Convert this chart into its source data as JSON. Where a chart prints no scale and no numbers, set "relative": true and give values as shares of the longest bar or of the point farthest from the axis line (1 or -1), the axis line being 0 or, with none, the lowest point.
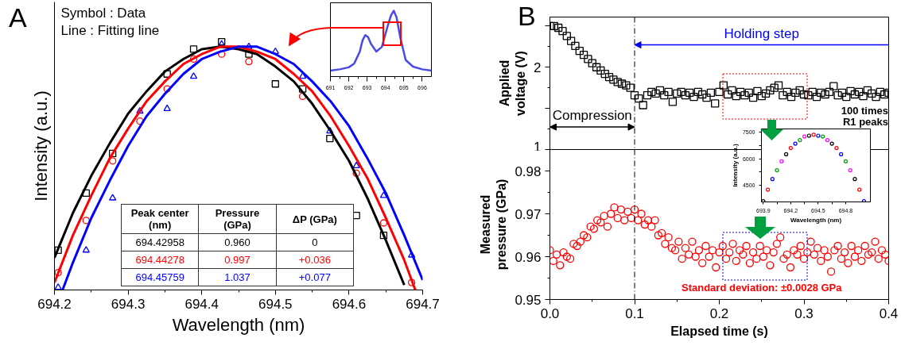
{
  "chart_data": [
    {
      "type": "scatter",
      "title": "A",
      "xlabel": "Wavelength (nm)",
      "ylabel": "Intensity (a.u.)",
      "relative": true,
      "tick_labels": "x",
      "xlim": [
        694.2,
        694.7
      ],
      "xticks": [
        694.2,
        694.3,
        694.4,
        694.5,
        694.6,
        694.7
      ],
      "annotations": [
        "Symbol : Data",
        "Line : Fitting line",
        "Peak center (nm)",
        "Pressure (GPa)",
        "ΔP (GPa)",
        "694.42958",
        "0.960",
        "0",
        "694.44278",
        "0.997",
        "+0.036",
        "694.45759",
        "1.037",
        "+0.077"
      ],
      "series": [
        {
          "type": "scatter",
          "marker": "square",
          "color": "#000000",
          "x": [
            694.205,
            694.243,
            694.279,
            694.353,
            694.389,
            694.427,
            694.464,
            694.5,
            694.537,
            694.574,
            694.61,
            694.647
          ],
          "values": [
            0.16,
            0.39,
            0.55,
            0.87,
            0.97,
            1.0,
            0.95,
            0.83,
            0.81,
            0.61,
            0.3,
            0.22
          ]
        },
        {
          "type": "scatter",
          "marker": "circle",
          "color": "#ff0000",
          "x": [
            694.205,
            694.243,
            694.279,
            694.316,
            694.353,
            694.389,
            694.427,
            694.464,
            694.537,
            694.61,
            694.647,
            694.685
          ],
          "values": [
            0.07,
            0.28,
            0.52,
            0.68,
            0.81,
            0.93,
            0.95,
            0.92,
            0.78,
            0.47,
            0.27,
            0.03
          ]
        },
        {
          "type": "scatter",
          "marker": "triangle",
          "color": "#0000ff",
          "x": [
            694.205,
            694.243,
            694.279,
            694.316,
            694.353,
            694.389,
            694.427,
            694.464,
            694.5,
            694.537,
            694.574,
            694.61,
            694.647,
            694.685
          ],
          "values": [
            0.01,
            0.16,
            0.37,
            0.72,
            0.73,
            0.86,
            0.99,
            0.98,
            0.96,
            0.86,
            0.64,
            0.5,
            0.38,
            0.14
          ]
        },
        {
          "type": "line",
          "color": "#000000",
          "x": [
            694.2,
            694.225,
            694.25,
            694.275,
            694.3,
            694.325,
            694.35,
            694.375,
            694.4,
            694.425,
            694.45,
            694.475,
            694.5,
            694.525,
            694.55,
            694.575,
            694.6,
            694.625,
            694.65,
            694.675
          ],
          "values": [
            0.13,
            0.31,
            0.46,
            0.59,
            0.71,
            0.8,
            0.88,
            0.93,
            0.97,
            0.98,
            0.97,
            0.95,
            0.9,
            0.84,
            0.75,
            0.64,
            0.52,
            0.37,
            0.2,
            0.02
          ]
        },
        {
          "type": "line",
          "color": "#ff0000",
          "x": [
            694.2,
            694.225,
            694.25,
            694.275,
            694.3,
            694.325,
            694.35,
            694.375,
            694.4,
            694.425,
            694.45,
            694.475,
            694.5,
            694.525,
            694.55,
            694.575,
            694.6,
            694.625,
            694.65,
            694.675,
            694.69
          ],
          "values": [
            0.03,
            0.22,
            0.38,
            0.53,
            0.65,
            0.76,
            0.84,
            0.91,
            0.95,
            0.98,
            0.98,
            0.96,
            0.93,
            0.87,
            0.8,
            0.7,
            0.58,
            0.45,
            0.29,
            0.12,
            0.0
          ]
        },
        {
          "type": "line",
          "color": "#0000ff",
          "x": [
            694.211,
            694.225,
            694.25,
            694.275,
            694.3,
            694.325,
            694.35,
            694.375,
            694.4,
            694.425,
            694.45,
            694.475,
            694.5,
            694.525,
            694.55,
            694.575,
            694.6,
            694.625,
            694.65,
            694.675,
            694.7
          ],
          "values": [
            0.0,
            0.11,
            0.29,
            0.44,
            0.58,
            0.7,
            0.79,
            0.87,
            0.93,
            0.96,
            0.98,
            0.98,
            0.95,
            0.91,
            0.84,
            0.76,
            0.66,
            0.53,
            0.39,
            0.22,
            0.04
          ]
        }
      ]
    },
    {
      "type": "line",
      "relative": true,
      "tick_labels": "x",
      "xlim": [
        691,
        696.5
      ],
      "xticks": [
        691,
        692,
        693,
        694,
        695,
        696
      ],
      "series": [
        {
          "color": "#4a4ae6",
          "x": [
            691,
            691.5,
            692,
            692.3,
            692.6,
            692.75,
            692.9,
            693.05,
            693.2,
            693.5,
            693.8,
            694.1,
            694.3,
            694.45,
            694.6,
            694.8,
            695.1,
            695.5,
            696,
            696.5
          ],
          "values": [
            0.09,
            0.11,
            0.14,
            0.2,
            0.38,
            0.55,
            0.63,
            0.6,
            0.5,
            0.38,
            0.45,
            0.75,
            0.93,
            1.0,
            0.9,
            0.6,
            0.25,
            0.15,
            0.11,
            0.09
          ]
        }
      ]
    },
    {
      "type": "scatter",
      "title": "B",
      "ylabel": "Applied voltage (V)",
      "tick_labels": "y",
      "xlim": [
        0,
        0.4
      ],
      "ylim": [
        1,
        2.61
      ],
      "yticks": [
        1,
        {
          "value": 1.5,
          "label": null
        },
        2,
        {
          "value": 2.5,
          "label": null
        }
      ],
      "ref_lines": [
        {
          "axis": "x",
          "value": 0.1,
          "line_style": "dashed",
          "color": "#000000"
        }
      ],
      "annotations": [
        "Holding step",
        "Compression"
      ],
      "series": [
        {
          "marker": "square",
          "color": "#000000",
          "x": [
            0,
            0.005,
            0.01,
            0.015,
            0.02,
            0.025,
            0.03,
            0.035,
            0.04,
            0.045,
            0.05,
            0.055,
            0.06,
            0.065,
            0.07,
            0.075,
            0.08,
            0.085,
            0.09,
            0.095,
            0.1,
            0.105,
            0.11,
            0.115,
            0.12,
            0.125,
            0.13,
            0.135,
            0.14,
            0.145,
            0.15,
            0.155,
            0.16,
            0.165,
            0.17,
            0.175,
            0.18,
            0.185,
            0.19,
            0.195,
            0.2,
            0.205,
            0.21,
            0.215,
            0.22,
            0.225,
            0.23,
            0.235,
            0.24,
            0.245,
            0.25,
            0.255,
            0.26,
            0.265,
            0.27,
            0.275,
            0.28,
            0.285,
            0.29,
            0.295,
            0.3,
            0.305,
            0.31,
            0.315,
            0.32,
            0.325,
            0.33,
            0.335,
            0.34,
            0.345,
            0.35,
            0.355,
            0.36,
            0.365,
            0.37,
            0.375,
            0.38,
            0.385,
            0.39,
            0.395,
            0.4
          ],
          "values": [
            2.5,
            2.5,
            2.48,
            2.44,
            2.38,
            2.32,
            2.26,
            2.2,
            2.15,
            2.1,
            2.05,
            2.0,
            1.96,
            1.92,
            1.88,
            1.85,
            1.82,
            1.8,
            1.78,
            1.75,
            1.66,
            1.62,
            1.54,
            1.66,
            1.7,
            1.68,
            1.72,
            1.66,
            1.7,
            1.58,
            1.68,
            1.7,
            1.66,
            1.69,
            1.64,
            1.7,
            1.67,
            1.63,
            1.69,
            1.56,
            1.7,
            1.78,
            1.67,
            1.72,
            1.65,
            1.7,
            1.66,
            1.69,
            1.63,
            1.71,
            1.65,
            1.68,
            1.72,
            1.75,
            1.78,
            1.66,
            1.7,
            1.64,
            1.69,
            1.72,
            1.67,
            1.66,
            1.7,
            1.64,
            1.69,
            1.67,
            1.7,
            1.77,
            1.66,
            1.69,
            1.64,
            1.71,
            1.67,
            1.7,
            1.65,
            1.72,
            1.68,
            1.64,
            1.7,
            1.67,
            1.69
          ]
        }
      ]
    },
    {
      "type": "scatter",
      "xlabel": "Wavelength (nm)",
      "ylabel": "Intensity (a.u.)",
      "xlim": [
        693.88,
        695.07
      ],
      "ylim": [
        3560,
        7680
      ],
      "xticks": [
        693.9,
        694.2,
        694.5,
        694.8
      ],
      "yticks": [
        4500,
        6000,
        7500
      ],
      "annotations": [
        "100 times R1 peaks"
      ],
      "x": [
        693.9,
        693.95,
        694.0,
        694.05,
        694.1,
        694.15,
        694.2,
        694.25,
        694.3,
        694.35,
        694.4,
        694.45,
        694.5,
        694.55,
        694.6,
        694.65,
        694.7,
        694.75,
        694.8,
        694.85,
        694.9,
        694.95,
        695.0
      ],
      "values": [
        3600,
        4250,
        4850,
        5350,
        5850,
        6250,
        6600,
        6850,
        7050,
        7250,
        7300,
        7350,
        7300,
        7250,
        7050,
        6850,
        6600,
        6250,
        5850,
        5350,
        4850,
        4250,
        3600
      ],
      "colors": [
        "#000000",
        "#ff0000",
        "#0000ff",
        "#00a000",
        "#ff00ff",
        "#000000",
        "#ff0000",
        "#0000ff",
        "#00a000",
        "#ff00ff",
        "#000000",
        "#ff0000",
        "#0000ff",
        "#00a000",
        "#ff00ff",
        "#000000",
        "#ff0000",
        "#0000ff",
        "#00a000",
        "#ff00ff",
        "#000000",
        "#ff0000",
        "#0000ff"
      ],
      "marker": "circle"
    },
    {
      "type": "scatter",
      "xlabel": "Elapsed time (s)",
      "ylabel": "Measured pressure (GPa)",
      "xlim": [
        0,
        0.4
      ],
      "ylim": [
        0.95,
        0.985
      ],
      "xticks": [
        {
          "value": 0,
          "label": "0.0"
        },
        0.1,
        0.2,
        0.3,
        0.4
      ],
      "yticks": [
        0.95,
        0.96,
        0.97,
        0.98
      ],
      "ref_lines": [
        {
          "axis": "x",
          "value": 0.1,
          "line_style": "dashed",
          "color": "#000000"
        }
      ],
      "annotations": [
        "Standard deviation: ±0.0028 GPa"
      ],
      "series": [
        {
          "marker": "circle",
          "color": "#ff0000",
          "x": [
            0,
            0.004,
            0.008,
            0.012,
            0.016,
            0.02,
            0.024,
            0.028,
            0.032,
            0.036,
            0.04,
            0.044,
            0.048,
            0.052,
            0.056,
            0.06,
            0.064,
            0.068,
            0.072,
            0.076,
            0.08,
            0.084,
            0.088,
            0.092,
            0.096,
            0.1,
            0.104,
            0.108,
            0.112,
            0.116,
            0.12,
            0.124,
            0.128,
            0.132,
            0.136,
            0.14,
            0.144,
            0.148,
            0.152,
            0.156,
            0.16,
            0.164,
            0.168,
            0.172,
            0.176,
            0.18,
            0.184,
            0.188,
            0.192,
            0.196,
            0.2,
            0.204,
            0.208,
            0.212,
            0.216,
            0.22,
            0.224,
            0.228,
            0.232,
            0.236,
            0.24,
            0.244,
            0.248,
            0.252,
            0.256,
            0.26,
            0.264,
            0.268,
            0.272,
            0.276,
            0.28,
            0.284,
            0.288,
            0.292,
            0.296,
            0.3,
            0.304,
            0.308,
            0.312,
            0.316,
            0.32,
            0.324,
            0.328,
            0.332,
            0.336,
            0.34,
            0.344,
            0.348,
            0.352,
            0.356,
            0.36,
            0.364,
            0.368,
            0.372,
            0.376,
            0.38,
            0.384,
            0.388,
            0.392,
            0.396,
            0.4
          ],
          "values": [
            0.9615,
            0.959,
            0.9605,
            0.958,
            0.961,
            0.96,
            0.9595,
            0.963,
            0.9625,
            0.9635,
            0.965,
            0.9645,
            0.967,
            0.9665,
            0.9685,
            0.968,
            0.9695,
            0.967,
            0.97,
            0.9715,
            0.969,
            0.971,
            0.9685,
            0.9705,
            0.969,
            0.971,
            0.9685,
            0.97,
            0.9675,
            0.9685,
            0.967,
            0.9685,
            0.965,
            0.9655,
            0.963,
            0.9645,
            0.962,
            0.9615,
            0.9635,
            0.9595,
            0.962,
            0.9605,
            0.9635,
            0.96,
            0.9615,
            0.9585,
            0.9625,
            0.96,
            0.9615,
            0.9575,
            0.961,
            0.9625,
            0.9595,
            0.961,
            0.963,
            0.959,
            0.9615,
            0.9605,
            0.9625,
            0.9585,
            0.961,
            0.9595,
            0.9625,
            0.96,
            0.9615,
            0.958,
            0.961,
            0.963,
            0.9645,
            0.9595,
            0.9605,
            0.9575,
            0.9615,
            0.9605,
            0.9625,
            0.9595,
            0.961,
            0.9635,
            0.9605,
            0.962,
            0.959,
            0.9615,
            0.96,
            0.9565,
            0.9615,
            0.9625,
            0.9595,
            0.961,
            0.9585,
            0.9625,
            0.96,
            0.9615,
            0.959,
            0.9625,
            0.9605,
            0.961,
            0.9635,
            0.9595,
            0.9615,
            0.9605,
            0.959
          ]
        }
      ]
    }
  ]
}
